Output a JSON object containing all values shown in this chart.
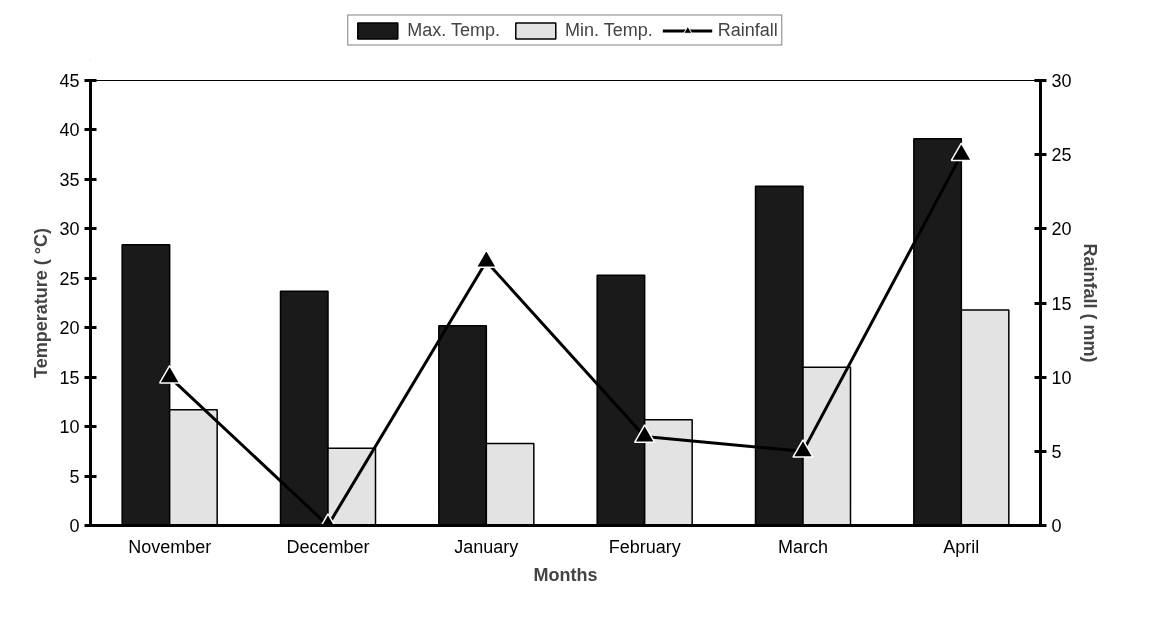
{
  "chart_data": {
    "type": "bar",
    "xlabel": "Months",
    "ylabel": "Temperature ( °C)",
    "y2label": "Rainfall ( mm)",
    "categories": [
      "November",
      "December",
      "January",
      "February",
      "March",
      "April"
    ],
    "series": [
      {
        "name": "Max. Temp.",
        "color": "#1a1a1a",
        "values": [
          28.4,
          23.7,
          20.2,
          25.3,
          34.3,
          39.1
        ]
      },
      {
        "name": "Min. Temp.",
        "color": "#e3e3e3",
        "values": [
          11.7,
          7.8,
          8.3,
          10.7,
          16.0,
          21.8
        ]
      },
      {
        "name": "Rainfall",
        "type": "line",
        "axis": "y2",
        "color": "#000000",
        "marker": "triangle",
        "values": [
          10,
          0,
          17.8,
          6,
          5,
          25
        ]
      }
    ],
    "ylim": [
      0,
      45
    ],
    "yticks": [
      0,
      5,
      10,
      15,
      20,
      25,
      30,
      35,
      40,
      45
    ],
    "y2lim": [
      0,
      30
    ],
    "y2ticks": [
      0,
      5,
      10,
      15,
      20,
      25,
      30
    ],
    "grid": false,
    "legend": "top"
  }
}
